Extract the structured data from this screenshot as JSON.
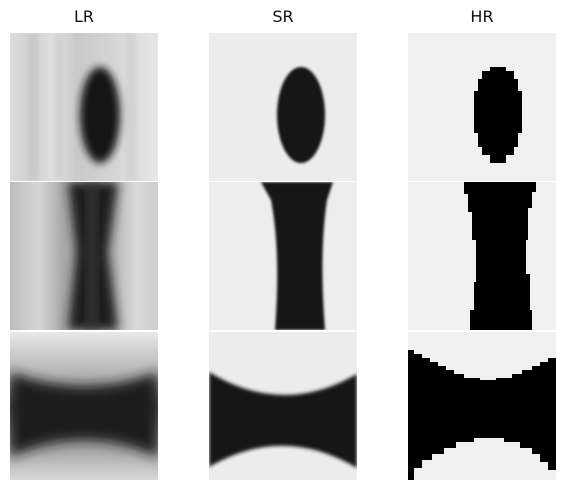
{
  "figure": {
    "columns": [
      {
        "key": "lr",
        "label": "LR"
      },
      {
        "key": "sr",
        "label": "SR"
      },
      {
        "key": "hr",
        "label": "HR"
      }
    ],
    "rows": [
      {
        "shape": "ellipse"
      },
      {
        "shape": "waist-column"
      },
      {
        "shape": "bowtie"
      }
    ]
  }
}
